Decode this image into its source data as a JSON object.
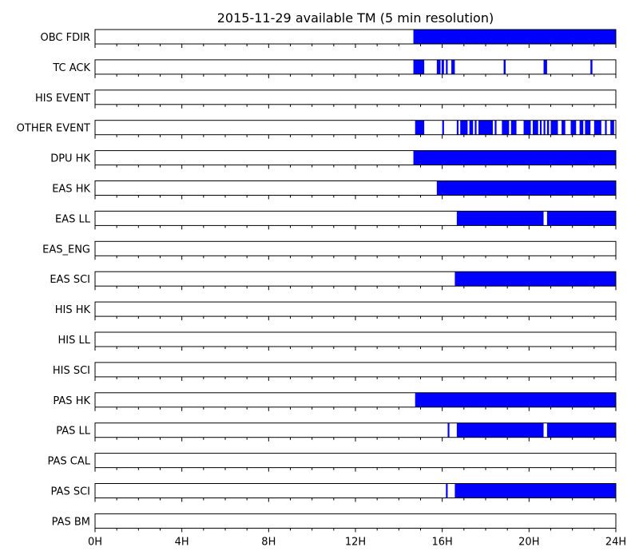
{
  "chart_data": {
    "type": "timeline",
    "title": "2015-11-29 available TM (5 min resolution)",
    "xlim": [
      0,
      24
    ],
    "xticks": [
      {
        "value": 0,
        "label": "0H"
      },
      {
        "value": 4,
        "label": "4H"
      },
      {
        "value": 8,
        "label": "8H"
      },
      {
        "value": 12,
        "label": "12H"
      },
      {
        "value": 16,
        "label": "16H"
      },
      {
        "value": 20,
        "label": "20H"
      },
      {
        "value": 24,
        "label": "24H"
      }
    ],
    "minor_tick_step_hours": 1,
    "bar_color": "#0000ff",
    "rows": [
      {
        "name": "OBC FDIR",
        "segments": [
          [
            14.67,
            24.0
          ]
        ]
      },
      {
        "name": "TC ACK",
        "segments": [
          [
            14.67,
            15.17
          ],
          [
            15.75,
            15.92
          ],
          [
            15.97,
            16.08
          ],
          [
            16.17,
            16.25
          ],
          [
            16.42,
            16.58
          ],
          [
            18.83,
            18.92
          ],
          [
            20.67,
            20.83
          ],
          [
            22.83,
            22.92
          ]
        ]
      },
      {
        "name": "HIS EVENT",
        "segments": []
      },
      {
        "name": "OTHER EVENT",
        "segments": [
          [
            14.75,
            15.17
          ],
          [
            16.0,
            16.08
          ],
          [
            16.67,
            16.75
          ],
          [
            16.83,
            17.17
          ],
          [
            17.25,
            17.42
          ],
          [
            17.5,
            17.58
          ],
          [
            17.67,
            18.33
          ],
          [
            18.42,
            18.5
          ],
          [
            18.75,
            19.08
          ],
          [
            19.17,
            19.42
          ],
          [
            19.75,
            20.08
          ],
          [
            20.17,
            20.42
          ],
          [
            20.5,
            20.58
          ],
          [
            20.67,
            20.75
          ],
          [
            20.83,
            20.92
          ],
          [
            21.0,
            21.33
          ],
          [
            21.5,
            21.67
          ],
          [
            21.92,
            22.17
          ],
          [
            22.33,
            22.5
          ],
          [
            22.58,
            22.83
          ],
          [
            23.0,
            23.33
          ],
          [
            23.5,
            23.58
          ],
          [
            23.75,
            23.92
          ]
        ]
      },
      {
        "name": "DPU HK",
        "segments": [
          [
            14.67,
            24.0
          ]
        ]
      },
      {
        "name": "EAS HK",
        "segments": [
          [
            15.75,
            24.0
          ]
        ]
      },
      {
        "name": "EAS LL",
        "segments": [
          [
            16.67,
            20.67
          ],
          [
            20.83,
            24.0
          ]
        ]
      },
      {
        "name": "EAS_ENG",
        "segments": []
      },
      {
        "name": "EAS SCI",
        "segments": [
          [
            16.58,
            24.0
          ]
        ]
      },
      {
        "name": "HIS HK",
        "segments": []
      },
      {
        "name": "HIS LL",
        "segments": []
      },
      {
        "name": "HIS SCI",
        "segments": []
      },
      {
        "name": "PAS HK",
        "segments": [
          [
            14.75,
            24.0
          ]
        ]
      },
      {
        "name": "PAS LL",
        "segments": [
          [
            16.25,
            16.33
          ],
          [
            16.67,
            20.67
          ],
          [
            20.83,
            24.0
          ]
        ]
      },
      {
        "name": "PAS CAL",
        "segments": []
      },
      {
        "name": "PAS SCI",
        "segments": [
          [
            16.17,
            16.25
          ],
          [
            16.58,
            24.0
          ]
        ]
      },
      {
        "name": "PAS BM",
        "segments": []
      }
    ]
  }
}
